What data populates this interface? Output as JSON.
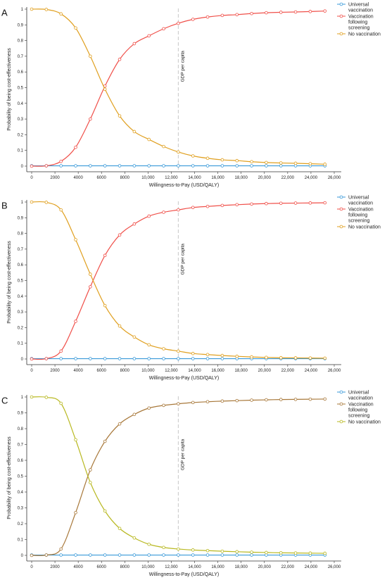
{
  "chart_data": [
    {
      "panel": "A",
      "type": "line",
      "xlabel": "Willingness-to-Pay (USD/QALY)",
      "ylabel": "Probability of being cost-effectiveness",
      "x_ticks": [
        "0",
        "2000",
        "4000",
        "6000",
        "8000",
        "10,000",
        "12,000",
        "14,000",
        "16,000",
        "18,000",
        "20,000",
        "22,000",
        "24,000",
        "26,000"
      ],
      "y_ticks": [
        "0",
        "0.1",
        "0.2",
        "0.3",
        "0.4",
        "0.5",
        "0.6",
        "0.7",
        "0.8",
        "0.9",
        "1"
      ],
      "xlim": [
        0,
        26000
      ],
      "ylim": [
        0,
        1
      ],
      "grid": false,
      "legend_position": "right",
      "reference_line": {
        "x": 12600,
        "label": "GDP per capita",
        "color": "#c8c8c8"
      },
      "x": [
        0,
        1260,
        2520,
        3780,
        5040,
        6300,
        7560,
        8820,
        10080,
        11340,
        12600,
        13860,
        15120,
        16380,
        17640,
        18900,
        20160,
        21420,
        22680,
        23940,
        25200
      ],
      "series": [
        {
          "name": "Universal vaccination",
          "color": "#3a9ad9",
          "values": [
            0.002,
            0.002,
            0.002,
            0.002,
            0.002,
            0.002,
            0.002,
            0.002,
            0.002,
            0.002,
            0.002,
            0.002,
            0.002,
            0.002,
            0.002,
            0.002,
            0.002,
            0.002,
            0.002,
            0.002,
            0.002
          ]
        },
        {
          "name": "Vaccination following screening",
          "color": "#f0504a",
          "values": [
            0.0,
            0.002,
            0.03,
            0.12,
            0.3,
            0.51,
            0.68,
            0.78,
            0.83,
            0.875,
            0.91,
            0.935,
            0.95,
            0.96,
            0.965,
            0.972,
            0.977,
            0.98,
            0.982,
            0.985,
            0.988
          ]
        },
        {
          "name": "No vaccination",
          "color": "#e0a020",
          "values": [
            1.0,
            0.998,
            0.97,
            0.88,
            0.7,
            0.49,
            0.32,
            0.22,
            0.17,
            0.125,
            0.09,
            0.065,
            0.05,
            0.04,
            0.035,
            0.028,
            0.023,
            0.02,
            0.018,
            0.015,
            0.012
          ]
        }
      ]
    },
    {
      "panel": "B",
      "type": "line",
      "xlabel": "Willingness-to-Pay (USD/QALY)",
      "ylabel": "Probability of being cost-effectiveness",
      "x_ticks": [
        "0",
        "2000",
        "4000",
        "6000",
        "8000",
        "10,000",
        "12,000",
        "14,000",
        "16,000",
        "18,000",
        "20,000",
        "22,000",
        "24,000",
        "26,000"
      ],
      "y_ticks": [
        "0",
        "0.1",
        "0.2",
        "0.3",
        "0.4",
        "0.5",
        "0.6",
        "0.7",
        "0.8",
        "0.9",
        "1"
      ],
      "xlim": [
        0,
        26000
      ],
      "ylim": [
        0,
        1
      ],
      "grid": false,
      "legend_position": "right",
      "reference_line": {
        "x": 12600,
        "label": "GDP per capita",
        "color": "#c8c8c8"
      },
      "x": [
        0,
        1260,
        2520,
        3780,
        5040,
        6300,
        7560,
        8820,
        10080,
        11340,
        12600,
        13860,
        15120,
        16380,
        17640,
        18900,
        20160,
        21420,
        22680,
        23940,
        25200
      ],
      "series": [
        {
          "name": "Universal vaccination",
          "color": "#3a9ad9",
          "values": [
            0.002,
            0.002,
            0.002,
            0.002,
            0.002,
            0.002,
            0.002,
            0.002,
            0.002,
            0.002,
            0.002,
            0.002,
            0.002,
            0.002,
            0.002,
            0.002,
            0.002,
            0.002,
            0.002,
            0.002,
            0.002
          ]
        },
        {
          "name": "Vaccination following screening",
          "color": "#f0504a",
          "values": [
            0.0,
            0.002,
            0.05,
            0.24,
            0.46,
            0.66,
            0.79,
            0.86,
            0.91,
            0.935,
            0.95,
            0.965,
            0.972,
            0.978,
            0.983,
            0.987,
            0.99,
            0.992,
            0.993,
            0.994,
            0.995
          ]
        },
        {
          "name": "No vaccination",
          "color": "#e0a020",
          "values": [
            1.0,
            0.998,
            0.95,
            0.76,
            0.54,
            0.34,
            0.21,
            0.14,
            0.09,
            0.065,
            0.05,
            0.035,
            0.028,
            0.022,
            0.017,
            0.013,
            0.01,
            0.008,
            0.007,
            0.006,
            0.005
          ]
        }
      ]
    },
    {
      "panel": "C",
      "type": "line",
      "xlabel": "Willingness-to-Pay (USD/QALY)",
      "ylabel": "Probability of being cost-effectiveness",
      "x_ticks": [
        "0",
        "2000",
        "4000",
        "6000",
        "8000",
        "10,000",
        "12,000",
        "14,000",
        "16,000",
        "18,000",
        "20,000",
        "22,000",
        "24,000",
        "26,000"
      ],
      "y_ticks": [
        "0",
        "0.1",
        "0.2",
        "0.3",
        "0.4",
        "0.5",
        "0.6",
        "0.7",
        "0.8",
        "0.9",
        "1"
      ],
      "xlim": [
        0,
        26000
      ],
      "ylim": [
        0,
        1
      ],
      "grid": false,
      "legend_position": "right",
      "reference_line": {
        "x": 12600,
        "label": "GDP per capita",
        "color": "#c8c8c8"
      },
      "x": [
        0,
        1260,
        2520,
        3780,
        5040,
        6300,
        7560,
        8820,
        10080,
        11340,
        12600,
        13860,
        15120,
        16380,
        17640,
        18900,
        20160,
        21420,
        22680,
        23940,
        25200
      ],
      "series": [
        {
          "name": "Universal vaccination",
          "color": "#3a9ad9",
          "values": [
            0.002,
            0.002,
            0.002,
            0.002,
            0.002,
            0.002,
            0.002,
            0.002,
            0.002,
            0.002,
            0.002,
            0.002,
            0.002,
            0.002,
            0.002,
            0.002,
            0.002,
            0.002,
            0.002,
            0.002,
            0.002
          ]
        },
        {
          "name": "Vaccination following screening",
          "color": "#a8783a",
          "values": [
            0.0,
            0.002,
            0.04,
            0.27,
            0.54,
            0.72,
            0.83,
            0.89,
            0.93,
            0.947,
            0.957,
            0.965,
            0.97,
            0.974,
            0.977,
            0.98,
            0.982,
            0.984,
            0.985,
            0.986,
            0.987
          ]
        },
        {
          "name": "No vaccination",
          "color": "#b8b820",
          "values": [
            1.0,
            0.998,
            0.96,
            0.73,
            0.46,
            0.28,
            0.17,
            0.11,
            0.07,
            0.05,
            0.04,
            0.034,
            0.03,
            0.026,
            0.023,
            0.02,
            0.018,
            0.016,
            0.015,
            0.014,
            0.013
          ]
        }
      ]
    }
  ]
}
